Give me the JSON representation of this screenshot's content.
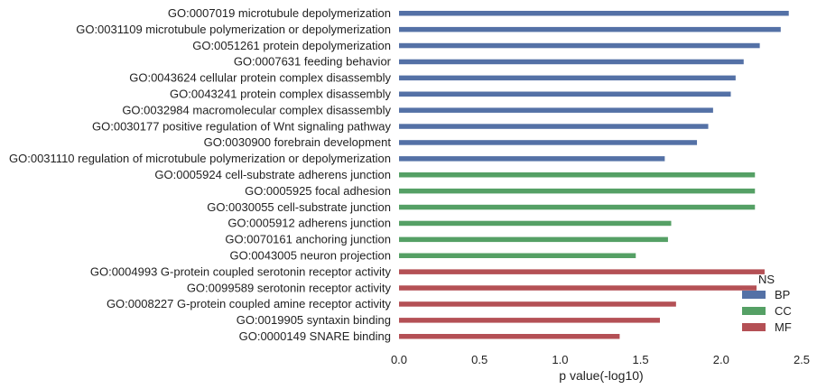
{
  "chart_data": {
    "type": "bar",
    "orientation": "horizontal",
    "categories": [
      "GO:0007019 microtubule depolymerization",
      "GO:0031109 microtubule polymerization or depolymerization",
      "GO:0051261 protein depolymerization",
      "GO:0007631 feeding behavior",
      "GO:0043624 cellular protein complex disassembly",
      "GO:0043241 protein complex disassembly",
      "GO:0032984 macromolecular complex disassembly",
      "GO:0030177 positive regulation of Wnt signaling pathway",
      "GO:0030900 forebrain development",
      "GO:0031110 regulation of microtubule polymerization or depolymerization",
      "GO:0005924 cell-substrate adherens junction",
      "GO:0005925 focal adhesion",
      "GO:0030055 cell-substrate junction",
      "GO:0005912 adherens junction",
      "GO:0070161 anchoring junction",
      "GO:0043005 neuron projection",
      "GO:0004993 G-protein coupled serotonin receptor activity",
      "GO:0099589 serotonin receptor activity",
      "GO:0008227 G-protein coupled amine receptor activity",
      "GO:0019905 syntaxin binding",
      "GO:0000149 SNARE binding"
    ],
    "values": [
      2.42,
      2.37,
      2.24,
      2.14,
      2.09,
      2.06,
      1.95,
      1.92,
      1.85,
      1.65,
      2.21,
      2.21,
      2.21,
      1.69,
      1.67,
      1.47,
      2.27,
      2.22,
      1.72,
      1.62,
      1.37
    ],
    "groups": [
      "BP",
      "BP",
      "BP",
      "BP",
      "BP",
      "BP",
      "BP",
      "BP",
      "BP",
      "BP",
      "CC",
      "CC",
      "CC",
      "CC",
      "CC",
      "CC",
      "MF",
      "MF",
      "MF",
      "MF",
      "MF"
    ],
    "series": [
      {
        "name": "BP",
        "color": "#5471a6"
      },
      {
        "name": "CC",
        "color": "#55a065"
      },
      {
        "name": "MF",
        "color": "#b45055"
      }
    ],
    "legend_title": "NS",
    "legend_placement": "right",
    "xlabel": "p value(-log10)",
    "ylabel": "",
    "xlim": [
      0,
      2.5
    ],
    "xticks": [
      "0.0",
      "0.5",
      "1.0",
      "1.5",
      "2.0",
      "2.5"
    ],
    "grid": false
  }
}
